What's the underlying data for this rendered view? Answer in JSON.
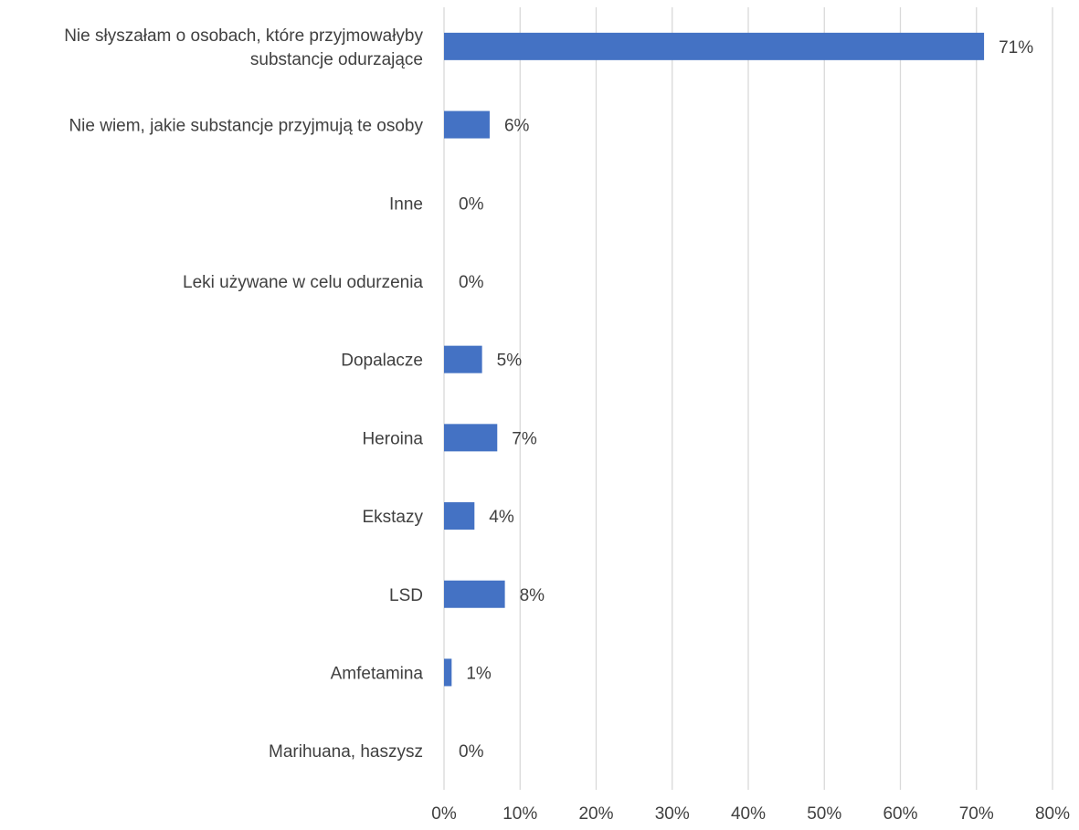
{
  "chart_data": {
    "type": "bar",
    "orientation": "horizontal",
    "title": "",
    "xlabel": "",
    "ylabel": "",
    "xlim": [
      0,
      80
    ],
    "x_ticks": [
      "0%",
      "10%",
      "20%",
      "30%",
      "40%",
      "50%",
      "60%",
      "70%",
      "80%"
    ],
    "grid": "vertical",
    "legend": "none",
    "bar_color": "#4472C4",
    "categories": [
      [
        "Nie słyszałam o osobach, które przyjmowałyby",
        "substancje odurzające"
      ],
      [
        "Nie wiem, jakie substancje przyjmują te osoby"
      ],
      [
        "Inne"
      ],
      [
        "Leki używane w celu odurzenia"
      ],
      [
        "Dopalacze"
      ],
      [
        "Heroina"
      ],
      [
        "Ekstazy"
      ],
      [
        "LSD"
      ],
      [
        "Amfetamina"
      ],
      [
        "Marihuana, haszysz"
      ]
    ],
    "values": [
      71,
      6,
      0,
      0,
      5,
      7,
      4,
      8,
      1,
      0
    ],
    "data_labels": [
      "71%",
      "6%",
      "0%",
      "0%",
      "5%",
      "7%",
      "4%",
      "8%",
      "1%",
      "0%"
    ]
  }
}
